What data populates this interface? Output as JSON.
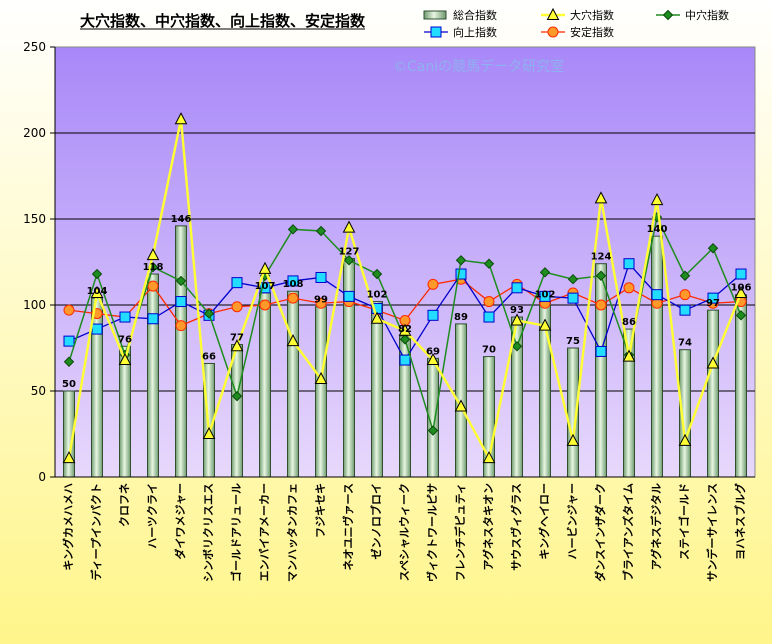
{
  "chart_data": {
    "type": "bar",
    "title": "大穴指数、中穴指数、向上指数、安定指数",
    "watermark": "©Caniの競馬データ研究室",
    "ylim": [
      0,
      250
    ],
    "yticks": [
      0,
      50,
      100,
      150,
      200,
      250
    ],
    "colors": {
      "bar": "#b8dcb0",
      "bar_edge": "#2f4f2f",
      "big": "#ffff33",
      "mid": "#1e8c1e",
      "up": "#0000cc",
      "stable": "#ff2a00",
      "plot_top": "#a888f8",
      "plot_bottom": "#e8d8fc",
      "bg_top": "#ffffff",
      "bg_bottom": "#fff58a"
    },
    "categories": [
      "キングカメハメハ",
      "ディープインパクト",
      "クロフネ",
      "ハーツクライ",
      "ダイワメジャー",
      "シンボリクリスエス",
      "ゴールドアリュール",
      "エンパイアメーカー",
      "マンハッタンカフェ",
      "フジキセキ",
      "ネオユニヴァース",
      "ゼンノロブロイ",
      "スペシャルウィーク",
      "ヴィクトワールピサ",
      "フレンチデピュティ",
      "アグネスタキオン",
      "サウスヴィグラス",
      "キングヘイロー",
      "ハービンジャー",
      "ダンスインザダーク",
      "ブライアンズタイム",
      "アグネスデジタル",
      "ステイゴールド",
      "サンデーサイレンス",
      "ヨハネスブルグ"
    ],
    "series": [
      {
        "name": "総合指数",
        "type": "bar",
        "values": [
          50,
          104,
          76,
          118,
          146,
          66,
          77,
          107,
          108,
          99,
          127,
          102,
          82,
          69,
          89,
          70,
          93,
          102,
          75,
          124,
          86,
          140,
          74,
          97,
          106
        ]
      },
      {
        "name": "大穴指数",
        "type": "line",
        "marker": "triangle",
        "values": [
          11,
          107,
          68,
          129,
          208,
          25,
          76,
          121,
          79,
          57,
          145,
          92,
          85,
          68,
          41,
          11,
          91,
          88,
          21,
          162,
          70,
          161,
          21,
          66,
          107
        ]
      },
      {
        "name": "中穴指数",
        "type": "line",
        "marker": "diamond",
        "values": [
          67,
          118,
          71,
          122,
          114,
          95,
          47,
          117,
          144,
          143,
          126,
          118,
          80,
          27,
          126,
          124,
          76,
          119,
          115,
          117,
          71,
          151,
          117,
          133,
          94
        ]
      },
      {
        "name": "向上指数",
        "type": "line",
        "marker": "square",
        "values": [
          79,
          86,
          93,
          92,
          102,
          94,
          113,
          110,
          114,
          116,
          105,
          98,
          68,
          94,
          118,
          93,
          110,
          105,
          104,
          73,
          124,
          106,
          97,
          104,
          118
        ]
      },
      {
        "name": "安定指数",
        "type": "line",
        "marker": "circle",
        "values": [
          97,
          95,
          93,
          111,
          88,
          95,
          99,
          100,
          104,
          101,
          102,
          97,
          91,
          112,
          115,
          102,
          112,
          101,
          107,
          100,
          110,
          101,
          106,
          101,
          102
        ]
      }
    ]
  }
}
